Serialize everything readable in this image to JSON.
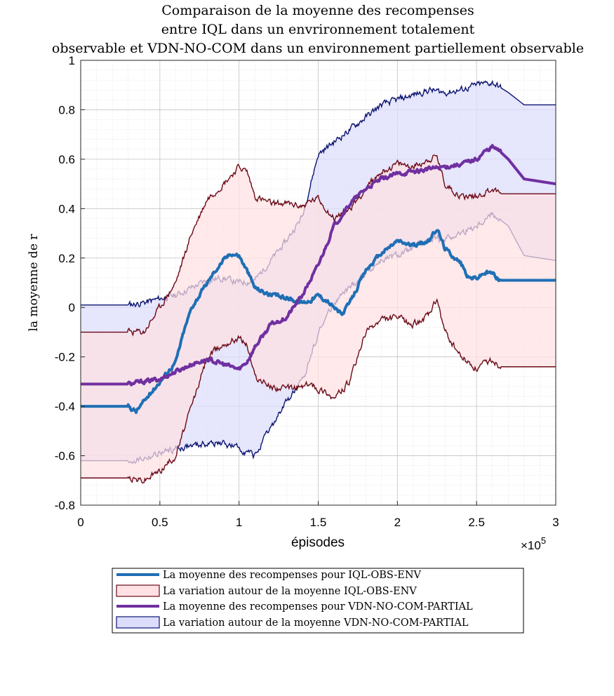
{
  "chart_data": {
    "type": "area",
    "title_lines": [
      "Comparaison de la moyenne des recompenses",
      "entre IQL dans un envrironnement totalement",
      "observable et VDN-NO-COM dans un environnement partiellement observable"
    ],
    "xlabel": "épisodes",
    "x_exponent_label": "×10",
    "x_exponent_power": "5",
    "ylabel": "la moyenne de r",
    "xlim": [
      0,
      300000
    ],
    "ylim": [
      -0.8,
      1
    ],
    "x_ticks": [
      0,
      50000,
      100000,
      150000,
      200000,
      250000,
      300000
    ],
    "x_tick_labels": [
      "0",
      "0.5",
      "1",
      "1.5",
      "2",
      "2.5",
      "3"
    ],
    "y_ticks": [
      -0.8,
      -0.6,
      -0.4,
      -0.2,
      0,
      0.2,
      0.4,
      0.6,
      0.8,
      1
    ],
    "y_tick_labels": [
      "-0.8",
      "-0.6",
      "-0.4",
      "-0.2",
      "0",
      "0.2",
      "0.4",
      "0.6",
      "0.8",
      "1"
    ],
    "grid": true,
    "minor_grid": true,
    "legend_position": "below",
    "colors": {
      "iql_mean": "#1f6fb5",
      "iql_band_fill": "#ffe0e3",
      "iql_band_edge": "#6b0a16",
      "vdn_mean": "#7030a0",
      "vdn_band_fill": "#dcdcfb",
      "vdn_band_edge": "#0c1470"
    },
    "legend": [
      {
        "label": "La moyenne des recompenses pour IQL-OBS-ENV",
        "kind": "line",
        "color": "#1f6fb5"
      },
      {
        "label": "La variation autour de la moyenne IQL-OBS-ENV",
        "kind": "patch",
        "fill": "#ffe0e3",
        "edge": "#6b0a16"
      },
      {
        "label": "La moyenne des recompenses pour VDN-NO-COM-PARTIAL",
        "kind": "line",
        "color": "#7030a0"
      },
      {
        "label": "La variation autour de la moyenne VDN-NO-COM-PARTIAL",
        "kind": "patch",
        "fill": "#dcdcfb",
        "edge": "#0c1470"
      }
    ],
    "series": [
      {
        "name": "La variation autour de la moyenne VDN-NO-COM-PARTIAL",
        "kind": "band",
        "x": [
          0,
          30000,
          40000,
          60000,
          80000,
          90000,
          100000,
          110000,
          130000,
          140000,
          150000,
          160000,
          170000,
          180000,
          190000,
          200000,
          210000,
          220000,
          230000,
          240000,
          250000,
          260000,
          270000,
          280000,
          300000
        ],
        "upper": [
          0.01,
          0.01,
          0.02,
          0.05,
          0.11,
          0.12,
          0.1,
          0.11,
          0.27,
          0.37,
          0.62,
          0.67,
          0.72,
          0.77,
          0.82,
          0.84,
          0.86,
          0.88,
          0.87,
          0.88,
          0.9,
          0.91,
          0.87,
          0.82,
          0.82
        ],
        "lower": [
          -0.62,
          -0.62,
          -0.61,
          -0.57,
          -0.55,
          -0.55,
          -0.57,
          -0.6,
          -0.38,
          -0.3,
          -0.1,
          0.02,
          0.08,
          0.14,
          0.19,
          0.21,
          0.24,
          0.27,
          0.28,
          0.3,
          0.33,
          0.38,
          0.33,
          0.21,
          0.19
        ]
      },
      {
        "name": "La variation autour de la moyenne IQL-OBS-ENV",
        "kind": "band",
        "x": [
          0,
          30000,
          40000,
          50000,
          60000,
          70000,
          80000,
          90000,
          100000,
          105000,
          110000,
          120000,
          130000,
          140000,
          145000,
          150000,
          155000,
          160000,
          170000,
          180000,
          190000,
          200000,
          210000,
          220000,
          225000,
          230000,
          240000,
          250000,
          260000,
          265000,
          300000
        ],
        "upper": [
          -0.1,
          -0.1,
          -0.1,
          0.0,
          0.1,
          0.3,
          0.44,
          0.5,
          0.57,
          0.55,
          0.45,
          0.42,
          0.42,
          0.41,
          0.43,
          0.44,
          0.4,
          0.36,
          0.4,
          0.48,
          0.55,
          0.58,
          0.57,
          0.6,
          0.61,
          0.5,
          0.45,
          0.45,
          0.48,
          0.46,
          0.46
        ],
        "lower": [
          -0.69,
          -0.69,
          -0.7,
          -0.66,
          -0.6,
          -0.4,
          -0.2,
          -0.15,
          -0.12,
          -0.15,
          -0.28,
          -0.32,
          -0.33,
          -0.32,
          -0.31,
          -0.33,
          -0.34,
          -0.37,
          -0.3,
          -0.1,
          -0.05,
          -0.04,
          -0.07,
          -0.03,
          0.03,
          -0.1,
          -0.2,
          -0.25,
          -0.21,
          -0.24,
          -0.24
        ]
      },
      {
        "name": "La moyenne des recompenses pour IQL-OBS-ENV",
        "kind": "line",
        "x": [
          0,
          30000,
          35000,
          40000,
          50000,
          60000,
          65000,
          70000,
          80000,
          85000,
          90000,
          95000,
          100000,
          105000,
          110000,
          120000,
          130000,
          140000,
          145000,
          150000,
          155000,
          160000,
          165000,
          170000,
          180000,
          190000,
          200000,
          210000,
          220000,
          225000,
          230000,
          240000,
          245000,
          250000,
          255000,
          260000,
          265000,
          300000
        ],
        "y": [
          -0.4,
          -0.4,
          -0.42,
          -0.38,
          -0.3,
          -0.22,
          -0.1,
          0.0,
          0.1,
          0.15,
          0.19,
          0.22,
          0.21,
          0.15,
          0.08,
          0.05,
          0.04,
          0.02,
          0.03,
          0.05,
          0.03,
          0.0,
          -0.03,
          0.02,
          0.15,
          0.22,
          0.27,
          0.25,
          0.27,
          0.32,
          0.24,
          0.18,
          0.12,
          0.12,
          0.14,
          0.14,
          0.11,
          0.11
        ]
      },
      {
        "name": "La moyenne des recompenses pour VDN-NO-COM-PARTIAL",
        "kind": "line",
        "x": [
          0,
          30000,
          40000,
          50000,
          60000,
          70000,
          80000,
          90000,
          100000,
          105000,
          110000,
          120000,
          130000,
          140000,
          150000,
          160000,
          170000,
          180000,
          190000,
          200000,
          210000,
          220000,
          230000,
          240000,
          250000,
          255000,
          260000,
          265000,
          270000,
          280000,
          300000
        ],
        "y": [
          -0.31,
          -0.31,
          -0.3,
          -0.29,
          -0.26,
          -0.23,
          -0.21,
          -0.23,
          -0.25,
          -0.22,
          -0.16,
          -0.07,
          -0.04,
          0.05,
          0.17,
          0.33,
          0.42,
          0.48,
          0.52,
          0.54,
          0.55,
          0.56,
          0.57,
          0.58,
          0.6,
          0.63,
          0.65,
          0.63,
          0.6,
          0.52,
          0.5
        ]
      }
    ]
  }
}
